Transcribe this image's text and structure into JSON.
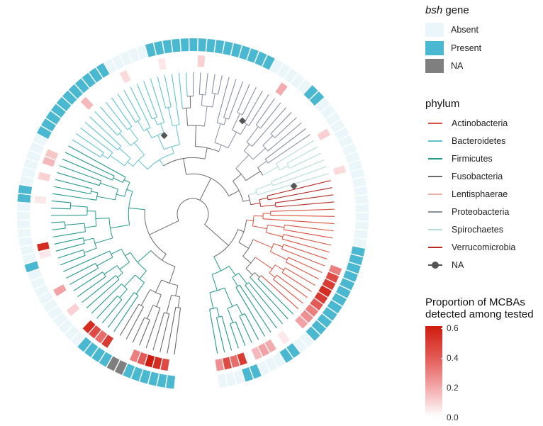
{
  "figure": {
    "kind": "circular phylogenetic tree with two annotation rings",
    "n_tips": 118
  },
  "legend_bsh": {
    "title_italic": "bsh",
    "title_rest": " gene",
    "items": [
      {
        "label": "Absent",
        "color": "#eaf6f9"
      },
      {
        "label": "Present",
        "color": "#4ab8d1"
      },
      {
        "label": "NA",
        "color": "#7f7f7f"
      }
    ]
  },
  "legend_phylum": {
    "title": "phylum",
    "items": [
      {
        "label": "Actinobacteria",
        "color": "#d9533e"
      },
      {
        "label": "Bacteroidetes",
        "color": "#5ec2cf"
      },
      {
        "label": "Firmicutes",
        "color": "#21998a"
      },
      {
        "label": "Fusobacteria",
        "color": "#6a6a6a"
      },
      {
        "label": "Lentisphaerae",
        "color": "#f0b0a6"
      },
      {
        "label": "Proteobacteria",
        "color": "#8a8fa3"
      },
      {
        "label": "Spirochaetes",
        "color": "#b3ddd8"
      },
      {
        "label": "Verrucomicrobia",
        "color": "#b52a22"
      },
      {
        "label": "NA",
        "color": "#555555"
      }
    ]
  },
  "legend_proportion": {
    "title_line1": "Proportion of MCBAs",
    "title_line2": "detected among tested",
    "ticks": [
      "0.6",
      "0.4",
      "0.2",
      "0.0"
    ],
    "range": [
      0,
      0.6
    ]
  },
  "colors": {
    "absent": "#eaf6f9",
    "present": "#4ab8d1",
    "na": "#7f7f7f",
    "prop_low": "#ffffff",
    "prop_high": "#d01c0f",
    "branch_default": "#6b6b6b",
    "node_marker": "#555555"
  }
}
